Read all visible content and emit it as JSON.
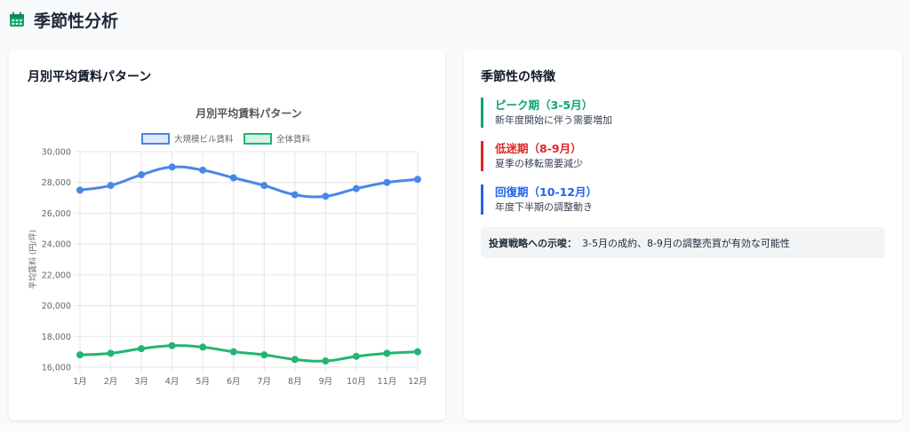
{
  "page": {
    "title": "季節性分析",
    "icon": "calendar-icon",
    "accent": "#10a56a"
  },
  "left_card": {
    "title": "月別平均賃料パターン"
  },
  "chart_data": {
    "type": "line",
    "title": "月別平均賃料パターン",
    "categories": [
      "1月",
      "2月",
      "3月",
      "4月",
      "5月",
      "6月",
      "7月",
      "8月",
      "9月",
      "10月",
      "11月",
      "12月"
    ],
    "series": [
      {
        "name": "大規模ビル賃料",
        "color": "#4a86e8",
        "values": [
          27500,
          27800,
          28500,
          29000,
          28800,
          28300,
          27800,
          27200,
          27100,
          27600,
          28000,
          28200
        ]
      },
      {
        "name": "全体賃料",
        "color": "#22b573",
        "values": [
          16800,
          16900,
          17200,
          17400,
          17300,
          17000,
          16800,
          16500,
          16400,
          16700,
          16900,
          17000
        ]
      }
    ],
    "ylabel": "平均賃料 (円/坪)",
    "xlabel": "",
    "ylim": [
      16000,
      30000
    ],
    "yticks": [
      "16,000",
      "18,000",
      "20,000",
      "22,000",
      "24,000",
      "26,000",
      "28,000",
      "30,000"
    ],
    "grid": true,
    "legend": "top"
  },
  "right_card": {
    "title": "季節性の特徴",
    "periods": [
      {
        "title": "ピーク期（3-5月）",
        "desc": "新年度開始に伴う需要増加",
        "color": "#10a56a"
      },
      {
        "title": "低迷期（8-9月）",
        "desc": "夏季の移転需要減少",
        "color": "#dc2626"
      },
      {
        "title": "回復期（10-12月）",
        "desc": "年度下半期の調整動き",
        "color": "#2563eb"
      }
    ],
    "insight_label": "投資戦略への示唆：",
    "insight_text": "3-5月の成約、8-9月の調整売買が有効な可能性"
  }
}
